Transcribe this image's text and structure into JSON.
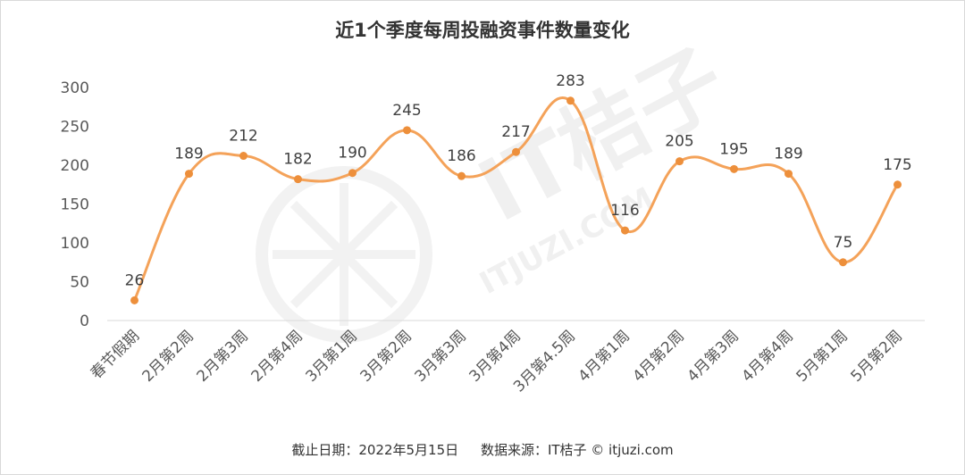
{
  "title": "近1个季度每周投融资事件数量变化",
  "footer": {
    "date": "截止日期：2022年5月15日",
    "source": "数据来源：IT桔子 © itjuzi.com"
  },
  "watermark": {
    "brand": "IT桔子",
    "site": "ITJUZI.COM"
  },
  "colors": {
    "line": "#f4a259",
    "point": "#ed8f3b",
    "axis": "#d9d9d9"
  },
  "chart_data": {
    "type": "line",
    "smooth": true,
    "title": "近1个季度每周投融资事件数量变化",
    "categories": [
      "春节假期",
      "2月第2周",
      "2月第3周",
      "2月第4周",
      "3月第1周",
      "3月第2周",
      "3月第3周",
      "3月第4周",
      "3月第4.5周",
      "4月第1周",
      "4月第2周",
      "4月第3周",
      "4月第4周",
      "5月第1周",
      "5月第2周"
    ],
    "values": [
      26,
      189,
      212,
      182,
      190,
      245,
      186,
      217,
      283,
      116,
      205,
      195,
      189,
      75,
      175
    ],
    "ylim": [
      0,
      300
    ],
    "yticks": [
      0,
      50,
      100,
      150,
      200,
      250,
      300
    ],
    "grid": false,
    "data_labels": true
  }
}
